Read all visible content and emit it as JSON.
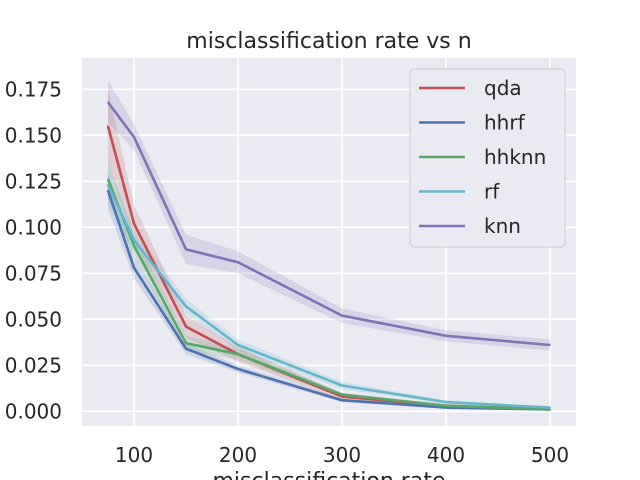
{
  "chart_data": {
    "type": "line",
    "title": "misclassification rate vs n",
    "xlabel": "misclassification rate",
    "ylabel": "",
    "x": [
      75,
      100,
      150,
      200,
      300,
      400,
      500
    ],
    "xlim": [
      50,
      525
    ],
    "ylim": [
      -0.008,
      0.192
    ],
    "xticks": [
      100,
      200,
      300,
      400,
      500
    ],
    "yticks": [
      0.0,
      0.025,
      0.05,
      0.075,
      0.1,
      0.125,
      0.15,
      0.175
    ],
    "ytick_labels": [
      "0.000",
      "0.025",
      "0.050",
      "0.075",
      "0.100",
      "0.125",
      "0.150",
      "0.175"
    ],
    "grid": true,
    "legend_position": "top-right",
    "series": [
      {
        "name": "qda",
        "color": "#c44e52",
        "values": [
          0.155,
          0.102,
          0.046,
          0.031,
          0.008,
          0.003,
          0.001
        ],
        "lower": [
          0.135,
          0.092,
          0.04,
          0.027,
          0.006,
          0.002,
          0.0
        ],
        "upper": [
          0.175,
          0.112,
          0.052,
          0.035,
          0.01,
          0.004,
          0.002
        ]
      },
      {
        "name": "hhrf",
        "color": "#4c72b0",
        "values": [
          0.12,
          0.078,
          0.034,
          0.023,
          0.006,
          0.002,
          0.001
        ],
        "lower": [
          0.11,
          0.072,
          0.031,
          0.021,
          0.005,
          0.0015,
          0.0005
        ],
        "upper": [
          0.13,
          0.084,
          0.037,
          0.025,
          0.007,
          0.0025,
          0.0015
        ]
      },
      {
        "name": "hhknn",
        "color": "#55a868",
        "values": [
          0.126,
          0.09,
          0.037,
          0.031,
          0.009,
          0.003,
          0.001
        ],
        "lower": [
          0.116,
          0.084,
          0.033,
          0.028,
          0.008,
          0.0025,
          0.0005
        ],
        "upper": [
          0.136,
          0.096,
          0.041,
          0.034,
          0.01,
          0.0035,
          0.0015
        ]
      },
      {
        "name": "rf",
        "color": "#64b5cd",
        "values": [
          0.123,
          0.093,
          0.057,
          0.036,
          0.014,
          0.005,
          0.002
        ],
        "lower": [
          0.113,
          0.087,
          0.053,
          0.033,
          0.012,
          0.004,
          0.0015
        ],
        "upper": [
          0.133,
          0.099,
          0.061,
          0.039,
          0.016,
          0.006,
          0.0025
        ]
      },
      {
        "name": "knn",
        "color": "#8172b2",
        "values": [
          0.168,
          0.149,
          0.088,
          0.081,
          0.052,
          0.041,
          0.036
        ],
        "lower": [
          0.157,
          0.142,
          0.08,
          0.075,
          0.048,
          0.038,
          0.033
        ],
        "upper": [
          0.18,
          0.156,
          0.096,
          0.087,
          0.056,
          0.044,
          0.039
        ]
      }
    ]
  }
}
